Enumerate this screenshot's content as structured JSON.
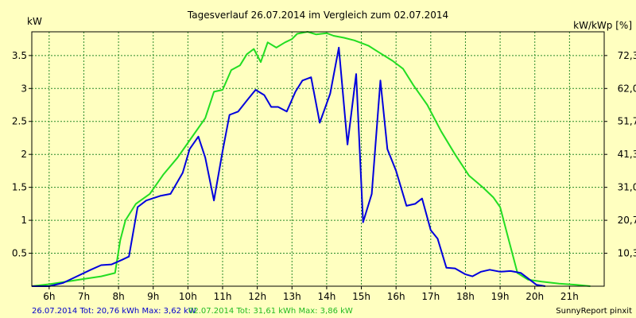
{
  "chart_data": {
    "type": "line",
    "title": "Tagesverlauf 26.07.2014 im Vergleich zum 02.07.2014",
    "ylabel_left": "kW",
    "ylabel_right": "kW/kWp [%]",
    "x_range": [
      5.5,
      22.0
    ],
    "ylim_left": [
      0,
      3.86
    ],
    "x_ticks": [
      {
        "label": "6h",
        "value": 6
      },
      {
        "label": "7h",
        "value": 7
      },
      {
        "label": "8h",
        "value": 8
      },
      {
        "label": "9h",
        "value": 9
      },
      {
        "label": "10h",
        "value": 10
      },
      {
        "label": "11h",
        "value": 11
      },
      {
        "label": "12h",
        "value": 12
      },
      {
        "label": "13h",
        "value": 13
      },
      {
        "label": "14h",
        "value": 14
      },
      {
        "label": "15h",
        "value": 15
      },
      {
        "label": "16h",
        "value": 16
      },
      {
        "label": "17h",
        "value": 17
      },
      {
        "label": "18h",
        "value": 18
      },
      {
        "label": "19h",
        "value": 19
      },
      {
        "label": "20h",
        "value": 20
      },
      {
        "label": "21h",
        "value": 21
      }
    ],
    "y_ticks_left": [
      {
        "label": "0.5",
        "value": 0.5
      },
      {
        "label": "1",
        "value": 1.0
      },
      {
        "label": "1.5",
        "value": 1.5
      },
      {
        "label": "2",
        "value": 2.0
      },
      {
        "label": "2.5",
        "value": 2.5
      },
      {
        "label": "3",
        "value": 3.0
      },
      {
        "label": "3.5",
        "value": 3.5
      }
    ],
    "y_ticks_right": [
      {
        "label": "10,3",
        "value": 0.5
      },
      {
        "label": "20,7",
        "value": 1.0
      },
      {
        "label": "31,0",
        "value": 1.5
      },
      {
        "label": "41,3",
        "value": 2.0
      },
      {
        "label": "51,7",
        "value": 2.5
      },
      {
        "label": "62,0",
        "value": 3.0
      },
      {
        "label": "72,3",
        "value": 3.5
      }
    ],
    "grid": true,
    "series": [
      {
        "name": "02.07.2014",
        "color": "#22dd22",
        "points": [
          [
            5.5,
            0.0
          ],
          [
            6.0,
            0.03
          ],
          [
            6.5,
            0.07
          ],
          [
            7.0,
            0.11
          ],
          [
            7.5,
            0.15
          ],
          [
            7.9,
            0.2
          ],
          [
            8.05,
            0.7
          ],
          [
            8.2,
            1.0
          ],
          [
            8.5,
            1.25
          ],
          [
            8.9,
            1.4
          ],
          [
            9.3,
            1.7
          ],
          [
            9.7,
            1.95
          ],
          [
            10.1,
            2.25
          ],
          [
            10.5,
            2.55
          ],
          [
            10.75,
            2.95
          ],
          [
            11.0,
            2.98
          ],
          [
            11.25,
            3.28
          ],
          [
            11.5,
            3.35
          ],
          [
            11.7,
            3.52
          ],
          [
            11.9,
            3.6
          ],
          [
            12.1,
            3.4
          ],
          [
            12.3,
            3.7
          ],
          [
            12.55,
            3.62
          ],
          [
            12.8,
            3.7
          ],
          [
            13.0,
            3.75
          ],
          [
            13.15,
            3.83
          ],
          [
            13.45,
            3.86
          ],
          [
            13.7,
            3.82
          ],
          [
            14.0,
            3.84
          ],
          [
            14.2,
            3.8
          ],
          [
            14.5,
            3.77
          ],
          [
            14.8,
            3.73
          ],
          [
            15.2,
            3.65
          ],
          [
            15.5,
            3.55
          ],
          [
            15.9,
            3.42
          ],
          [
            16.2,
            3.3
          ],
          [
            16.5,
            3.05
          ],
          [
            16.9,
            2.75
          ],
          [
            17.3,
            2.35
          ],
          [
            17.7,
            2.0
          ],
          [
            18.1,
            1.68
          ],
          [
            18.5,
            1.5
          ],
          [
            18.8,
            1.35
          ],
          [
            19.0,
            1.2
          ],
          [
            19.2,
            0.8
          ],
          [
            19.5,
            0.2
          ],
          [
            19.8,
            0.1
          ],
          [
            20.2,
            0.07
          ],
          [
            20.7,
            0.04
          ],
          [
            21.2,
            0.02
          ],
          [
            21.6,
            0.0
          ]
        ]
      },
      {
        "name": "26.07.2014",
        "color": "#0000dd",
        "points": [
          [
            5.5,
            0.0
          ],
          [
            6.0,
            0.0
          ],
          [
            6.4,
            0.05
          ],
          [
            6.8,
            0.15
          ],
          [
            7.2,
            0.25
          ],
          [
            7.5,
            0.32
          ],
          [
            7.8,
            0.33
          ],
          [
            8.1,
            0.4
          ],
          [
            8.3,
            0.45
          ],
          [
            8.55,
            1.2
          ],
          [
            8.8,
            1.3
          ],
          [
            9.2,
            1.37
          ],
          [
            9.5,
            1.4
          ],
          [
            9.85,
            1.72
          ],
          [
            10.05,
            2.08
          ],
          [
            10.3,
            2.27
          ],
          [
            10.5,
            1.95
          ],
          [
            10.75,
            1.3
          ],
          [
            11.0,
            2.05
          ],
          [
            11.2,
            2.6
          ],
          [
            11.45,
            2.65
          ],
          [
            11.75,
            2.85
          ],
          [
            11.95,
            2.98
          ],
          [
            12.2,
            2.9
          ],
          [
            12.4,
            2.72
          ],
          [
            12.6,
            2.72
          ],
          [
            12.85,
            2.65
          ],
          [
            13.1,
            2.95
          ],
          [
            13.3,
            3.12
          ],
          [
            13.55,
            3.17
          ],
          [
            13.8,
            2.48
          ],
          [
            14.1,
            2.92
          ],
          [
            14.35,
            3.62
          ],
          [
            14.6,
            2.15
          ],
          [
            14.85,
            3.22
          ],
          [
            15.05,
            0.97
          ],
          [
            15.3,
            1.4
          ],
          [
            15.55,
            3.12
          ],
          [
            15.75,
            2.08
          ],
          [
            16.0,
            1.75
          ],
          [
            16.3,
            1.22
          ],
          [
            16.55,
            1.25
          ],
          [
            16.75,
            1.33
          ],
          [
            17.0,
            0.85
          ],
          [
            17.2,
            0.72
          ],
          [
            17.45,
            0.28
          ],
          [
            17.7,
            0.27
          ],
          [
            18.0,
            0.18
          ],
          [
            18.2,
            0.15
          ],
          [
            18.45,
            0.22
          ],
          [
            18.7,
            0.25
          ],
          [
            19.0,
            0.22
          ],
          [
            19.3,
            0.23
          ],
          [
            19.6,
            0.2
          ],
          [
            19.85,
            0.1
          ],
          [
            20.05,
            0.02
          ],
          [
            20.3,
            0.0
          ]
        ]
      }
    ],
    "footer": {
      "series1_date": "26.07.2014",
      "series1_summary": "Tot: 20,76 kWh Max: 3,62 kW",
      "series2_date": "02.07.2014",
      "series2_summary": "Tot: 31,61 kWh Max: 3,86 kW",
      "credit": "SunnyReport pinxit"
    }
  }
}
